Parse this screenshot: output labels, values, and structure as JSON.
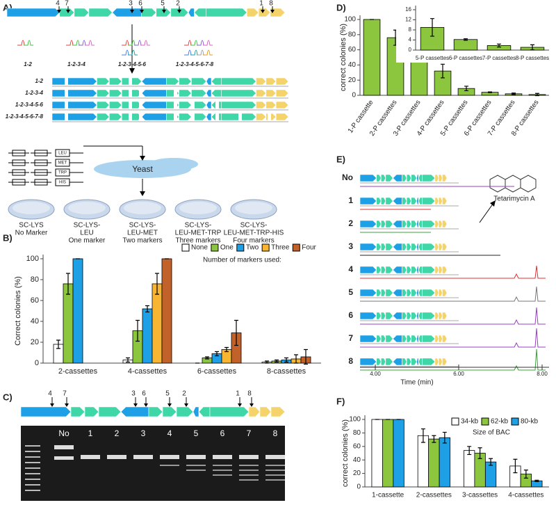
{
  "panels": {
    "A": {
      "label": "A)",
      "arrows": [
        "4",
        "7",
        "3",
        "6",
        "5",
        "2",
        "1",
        "8"
      ],
      "combos": [
        "1-2",
        "1-2-3-4",
        "1-2-3-4-5-6",
        "1-2-3-4-5-6-7-8"
      ],
      "markers": [
        "LEU",
        "MET",
        "TRP",
        "HIS"
      ],
      "host": "Yeast",
      "plates": [
        [
          "SC-LYS",
          "No Marker"
        ],
        [
          "SC-LYS-",
          "LEU",
          "One marker"
        ],
        [
          "SC-LYS-",
          "LEU-MET",
          "Two markers"
        ],
        [
          "SC-LYS-",
          "LEU-MET-TRP",
          "Three markers"
        ],
        [
          "SC-LYS-",
          "LEU-MET-TRP-HIS",
          "Four markers"
        ]
      ]
    },
    "B": {
      "label": "B)"
    },
    "C": {
      "label": "C)",
      "arrows": [
        "4",
        "7",
        "3",
        "6",
        "5",
        "2",
        "1",
        "8"
      ],
      "lanes": [
        "No",
        "1",
        "2",
        "3",
        "4",
        "5",
        "6",
        "7",
        "8"
      ]
    },
    "D": {
      "label": "D)"
    },
    "E": {
      "label": "E)",
      "traces": [
        "No",
        "1",
        "2",
        "3",
        "4",
        "5",
        "6",
        "7",
        "8"
      ],
      "compound": "Tetarimycin A",
      "xlabel": "Time (min)",
      "xticks": [
        "4.00",
        "6.00",
        "8.00"
      ]
    },
    "F": {
      "label": "F)"
    }
  },
  "chart_data": [
    {
      "type": "bar",
      "ylabel": "Correct colonies (%)",
      "legend_title": "Number of markers used:",
      "legend": "top-right",
      "categories": [
        "2-cassettes",
        "4-cassettes",
        "6-cassettes",
        "8-cassettes"
      ],
      "ylim": [
        0,
        100
      ],
      "yticks": [
        0,
        20,
        40,
        60,
        80,
        100
      ],
      "series": [
        {
          "name": "None",
          "color": "#ffffff",
          "values": [
            18,
            3,
            0,
            1
          ],
          "errors": [
            4,
            2,
            0,
            1
          ]
        },
        {
          "name": "One",
          "color": "#8cc63f",
          "values": [
            76,
            31,
            5,
            2
          ],
          "errors": [
            10,
            10,
            1,
            1
          ]
        },
        {
          "name": "Two",
          "color": "#1ea0e6",
          "values": [
            100,
            52,
            9,
            3
          ],
          "errors": [
            0,
            3,
            2,
            2
          ]
        },
        {
          "name": "Three",
          "color": "#f7b531",
          "values": [
            null,
            76,
            13,
            4
          ],
          "errors": [
            null,
            10,
            2,
            4
          ]
        },
        {
          "name": "Four",
          "color": "#c0622a",
          "values": [
            null,
            100,
            29,
            6
          ],
          "errors": [
            null,
            0,
            12,
            7
          ]
        }
      ]
    },
    {
      "type": "bar",
      "ylabel": "correct colonies (%)",
      "categories": [
        "1-P cassette",
        "2-P cassettes",
        "3-P cassettes",
        "4-P cassettes",
        "5-P cassettes",
        "6-P cassettes",
        "7-P cassettes",
        "8-P cassettes"
      ],
      "ylim": [
        0,
        100
      ],
      "yticks": [
        0,
        20,
        40,
        60,
        80,
        100
      ],
      "color": "#8cc63f",
      "values": [
        100,
        76,
        53,
        32,
        9,
        4,
        2,
        1
      ],
      "errors": [
        0,
        10,
        7,
        9,
        3,
        0.5,
        1,
        1.5
      ]
    },
    {
      "type": "bar",
      "categories": [
        "5-P cassettes",
        "6-P cassettes",
        "7-P cassettes",
        "8-P cassettes"
      ],
      "ylim": [
        0,
        16
      ],
      "yticks": [
        0,
        4,
        8,
        12,
        16
      ],
      "color": "#8cc63f",
      "values": [
        9,
        4.2,
        1.8,
        1.1
      ],
      "errors": [
        3.5,
        0.3,
        0.6,
        1
      ]
    },
    {
      "type": "bar",
      "ylabel": "correct colonies (%)",
      "legend_title": "Size of BAC",
      "legend": "top-right",
      "categories": [
        "1-cassette",
        "2-cassettes",
        "3-cassettes",
        "4-cassettes"
      ],
      "ylim": [
        0,
        100
      ],
      "yticks": [
        0,
        20,
        40,
        60,
        80,
        100
      ],
      "series": [
        {
          "name": "34-kb",
          "color": "#ffffff",
          "values": [
            100,
            76,
            54,
            31
          ],
          "errors": [
            0,
            10,
            6,
            10
          ]
        },
        {
          "name": "62-kb",
          "color": "#8cc63f",
          "values": [
            100,
            71,
            50,
            19
          ],
          "errors": [
            0,
            5,
            8,
            6
          ]
        },
        {
          "name": "80-kb",
          "color": "#1ea0e6",
          "values": [
            100,
            73,
            37,
            9
          ],
          "errors": [
            0,
            8,
            5,
            1
          ]
        }
      ]
    }
  ]
}
